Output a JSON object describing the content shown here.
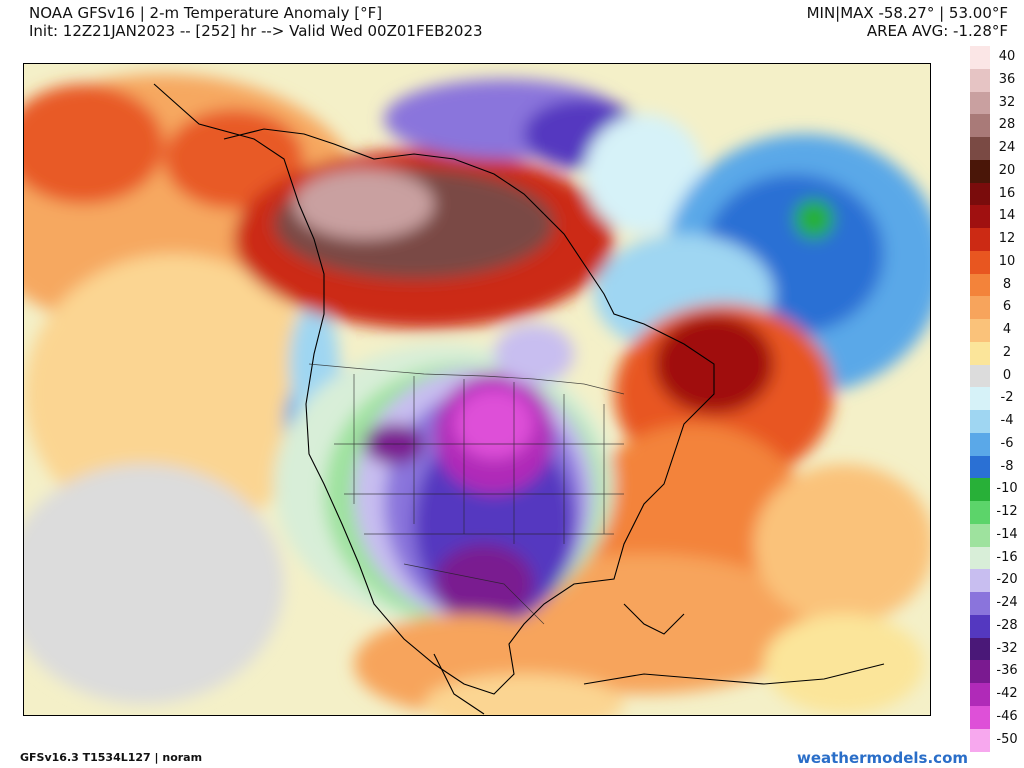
{
  "header": {
    "title": "NOAA GFSv16 | 2-m Temperature Anomaly [°F]",
    "init_line": "Init: 12Z21JAN2023 -- [252] hr --> Valid Wed 00Z01FEB2023",
    "minmax": "MIN|MAX -58.27° | 53.00°F",
    "area_avg": "AREA AVG: -1.28°F"
  },
  "colorbar": {
    "labels": [
      "40",
      "36",
      "32",
      "28",
      "24",
      "20",
      "16",
      "14",
      "12",
      "10",
      "8",
      "6",
      "4",
      "2",
      "0",
      "-2",
      "-4",
      "-6",
      "-8",
      "-10",
      "-12",
      "-14",
      "-16",
      "-20",
      "-24",
      "-28",
      "-32",
      "-36",
      "-42",
      "-46",
      "-50"
    ],
    "colors": [
      "#fbe6e6",
      "#e6c4c4",
      "#c9a0a0",
      "#a97a78",
      "#7a4a44",
      "#4a1608",
      "#7a0c0c",
      "#a01010",
      "#cc2a14",
      "#e85620",
      "#f3833a",
      "#f7a45c",
      "#fac27a",
      "#fbe59a",
      "#dcdcdc",
      "#d6f2f8",
      "#9fd6f2",
      "#5aa8e8",
      "#2a70d4",
      "#28b038",
      "#5cd46a",
      "#9ee29e",
      "#d8eed8",
      "#c8bef0",
      "#8a74dc",
      "#5438c0",
      "#4a1878",
      "#7a1a90",
      "#b02ab8",
      "#de50d8",
      "#f7a8ee"
    ]
  },
  "footer": {
    "model_info": "GFSv16.3 T1534L127 | noram",
    "site": "weathermodels.com"
  }
}
